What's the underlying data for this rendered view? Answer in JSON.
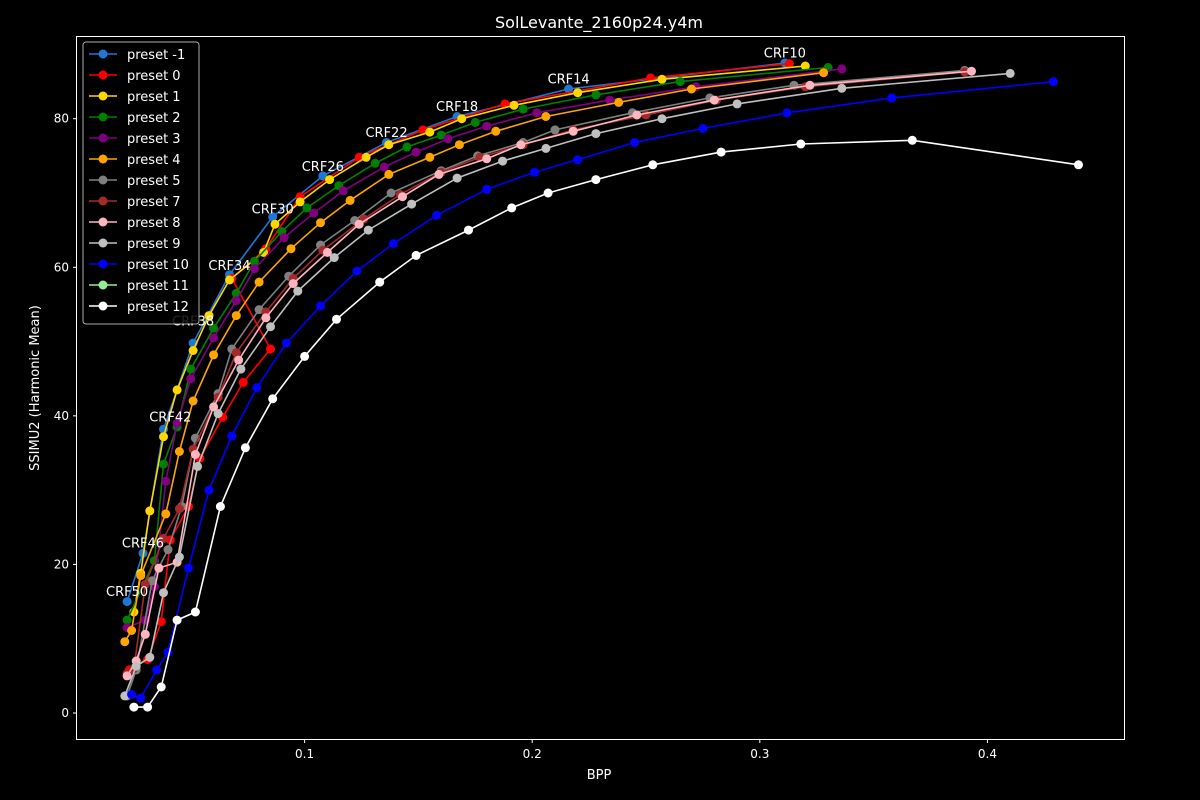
{
  "chart_data": {
    "type": "line",
    "title": "SolLevante_2160p24.y4m",
    "xlabel": "BPP",
    "ylabel": "SSIMU2 (Harmonic Mean)",
    "xlim": [
      0.0,
      0.46
    ],
    "ylim": [
      -3.5,
      91
    ],
    "xticks": [
      0.1,
      0.2,
      0.3,
      0.4
    ],
    "yticks": [
      0,
      20,
      40,
      60,
      80
    ],
    "grid": false,
    "legend_position": "top-left",
    "annotations": [
      {
        "text": "CRF10",
        "x": 0.311,
        "y": 88.8
      },
      {
        "text": "CRF14",
        "x": 0.216,
        "y": 85.3
      },
      {
        "text": "CRF18",
        "x": 0.167,
        "y": 81.6
      },
      {
        "text": "CRF22",
        "x": 0.136,
        "y": 78.1
      },
      {
        "text": "CRF26",
        "x": 0.108,
        "y": 73.5
      },
      {
        "text": "CRF30",
        "x": 0.086,
        "y": 67.8
      },
      {
        "text": "CRF34",
        "x": 0.067,
        "y": 60.2
      },
      {
        "text": "CRF38",
        "x": 0.051,
        "y": 52.7
      },
      {
        "text": "CRF42",
        "x": 0.041,
        "y": 39.8
      },
      {
        "text": "CRF46",
        "x": 0.029,
        "y": 22.8
      },
      {
        "text": "CRF50",
        "x": 0.022,
        "y": 16.3
      }
    ],
    "series": [
      {
        "name": "preset -1",
        "color": "#1f77d4",
        "points": [
          [
            0.022,
            15.0
          ],
          [
            0.029,
            21.5
          ],
          [
            0.038,
            38.2
          ],
          [
            0.051,
            49.8
          ],
          [
            0.067,
            59.0
          ],
          [
            0.086,
            66.8
          ],
          [
            0.108,
            72.3
          ],
          [
            0.136,
            76.8
          ],
          [
            0.167,
            80.3
          ],
          [
            0.216,
            84.0
          ],
          [
            0.311,
            87.5
          ]
        ]
      },
      {
        "name": "preset 0",
        "color": "#ff0000",
        "points": [
          [
            0.023,
            5.8
          ],
          [
            0.031,
            7.2
          ],
          [
            0.037,
            12.3
          ],
          [
            0.041,
            23.3
          ],
          [
            0.049,
            27.8
          ],
          [
            0.054,
            34.3
          ],
          [
            0.064,
            39.8
          ],
          [
            0.073,
            44.5
          ],
          [
            0.085,
            49.0
          ],
          [
            0.068,
            58.5
          ],
          [
            0.083,
            62.5
          ],
          [
            0.098,
            69.5
          ],
          [
            0.124,
            74.8
          ],
          [
            0.152,
            78.5
          ],
          [
            0.188,
            82.0
          ],
          [
            0.252,
            85.5
          ],
          [
            0.313,
            87.4
          ]
        ]
      },
      {
        "name": "preset 1",
        "color": "#ffd700",
        "points": [
          [
            0.025,
            13.6
          ],
          [
            0.028,
            18.8
          ],
          [
            0.032,
            27.2
          ],
          [
            0.038,
            37.2
          ],
          [
            0.044,
            43.5
          ],
          [
            0.051,
            48.8
          ],
          [
            0.058,
            53.5
          ],
          [
            0.067,
            58.3
          ],
          [
            0.082,
            62.0
          ],
          [
            0.087,
            65.8
          ],
          [
            0.098,
            68.8
          ],
          [
            0.111,
            71.8
          ],
          [
            0.127,
            74.8
          ],
          [
            0.137,
            76.5
          ],
          [
            0.155,
            78.2
          ],
          [
            0.169,
            80.0
          ],
          [
            0.192,
            81.8
          ],
          [
            0.22,
            83.5
          ],
          [
            0.257,
            85.3
          ],
          [
            0.32,
            87.1
          ]
        ]
      },
      {
        "name": "preset 2",
        "color": "#008000",
        "points": [
          [
            0.022,
            12.5
          ],
          [
            0.034,
            20.5
          ],
          [
            0.038,
            33.5
          ],
          [
            0.044,
            38.5
          ],
          [
            0.05,
            46.3
          ],
          [
            0.06,
            51.8
          ],
          [
            0.07,
            56.5
          ],
          [
            0.078,
            60.8
          ],
          [
            0.09,
            64.8
          ],
          [
            0.101,
            68.0
          ],
          [
            0.115,
            71.0
          ],
          [
            0.131,
            74.0
          ],
          [
            0.145,
            76.2
          ],
          [
            0.16,
            77.8
          ],
          [
            0.175,
            79.5
          ],
          [
            0.196,
            81.3
          ],
          [
            0.228,
            83.2
          ],
          [
            0.265,
            85.0
          ],
          [
            0.33,
            86.9
          ]
        ]
      },
      {
        "name": "preset 3",
        "color": "#800080",
        "points": [
          [
            0.022,
            11.5
          ],
          [
            0.03,
            12.5
          ],
          [
            0.034,
            17.0
          ],
          [
            0.039,
            31.2
          ],
          [
            0.044,
            39.0
          ],
          [
            0.05,
            45.0
          ],
          [
            0.06,
            50.5
          ],
          [
            0.07,
            55.5
          ],
          [
            0.078,
            59.8
          ],
          [
            0.091,
            64.0
          ],
          [
            0.104,
            67.3
          ],
          [
            0.117,
            70.3
          ],
          [
            0.135,
            73.5
          ],
          [
            0.149,
            75.5
          ],
          [
            0.163,
            77.3
          ],
          [
            0.18,
            79.0
          ],
          [
            0.202,
            80.8
          ],
          [
            0.234,
            82.5
          ],
          [
            0.272,
            84.3
          ],
          [
            0.336,
            86.7
          ]
        ]
      },
      {
        "name": "preset 4",
        "color": "#ffa500",
        "points": [
          [
            0.021,
            9.6
          ],
          [
            0.024,
            11.1
          ],
          [
            0.028,
            18.5
          ],
          [
            0.039,
            26.8
          ],
          [
            0.045,
            35.2
          ],
          [
            0.051,
            42.0
          ],
          [
            0.06,
            48.2
          ],
          [
            0.07,
            53.5
          ],
          [
            0.08,
            58.0
          ],
          [
            0.094,
            62.5
          ],
          [
            0.107,
            66.0
          ],
          [
            0.12,
            69.0
          ],
          [
            0.137,
            72.5
          ],
          [
            0.155,
            74.8
          ],
          [
            0.168,
            76.5
          ],
          [
            0.184,
            78.3
          ],
          [
            0.206,
            80.3
          ],
          [
            0.238,
            82.2
          ],
          [
            0.27,
            84.0
          ],
          [
            0.328,
            86.2
          ]
        ]
      },
      {
        "name": "preset 5",
        "color": "#808080",
        "points": [
          [
            0.022,
            2.3
          ],
          [
            0.026,
            5.8
          ],
          [
            0.033,
            17.8
          ],
          [
            0.04,
            22.0
          ],
          [
            0.046,
            27.8
          ],
          [
            0.052,
            37.0
          ],
          [
            0.062,
            43.0
          ],
          [
            0.068,
            49.0
          ],
          [
            0.08,
            54.3
          ],
          [
            0.093,
            58.8
          ],
          [
            0.107,
            63.0
          ],
          [
            0.122,
            66.3
          ],
          [
            0.138,
            70.0
          ],
          [
            0.16,
            73.0
          ],
          [
            0.176,
            75.0
          ],
          [
            0.196,
            76.8
          ],
          [
            0.21,
            78.5
          ],
          [
            0.244,
            80.8
          ],
          [
            0.278,
            82.8
          ],
          [
            0.315,
            84.5
          ],
          [
            0.39,
            86.5
          ]
        ]
      },
      {
        "name": "preset 7",
        "color": "#a52a2a",
        "points": [
          [
            0.022,
            5.3
          ],
          [
            0.025,
            6.0
          ],
          [
            0.03,
            17.3
          ],
          [
            0.038,
            23.5
          ],
          [
            0.045,
            27.5
          ],
          [
            0.051,
            35.5
          ],
          [
            0.062,
            42.5
          ],
          [
            0.07,
            48.5
          ],
          [
            0.083,
            54.0
          ],
          [
            0.095,
            58.5
          ],
          [
            0.108,
            62.3
          ],
          [
            0.126,
            66.5
          ],
          [
            0.142,
            69.8
          ],
          [
            0.16,
            72.8
          ],
          [
            0.177,
            74.8
          ],
          [
            0.196,
            76.5
          ],
          [
            0.218,
            78.5
          ],
          [
            0.25,
            80.5
          ],
          [
            0.281,
            82.5
          ],
          [
            0.32,
            84.3
          ],
          [
            0.39,
            86.3
          ]
        ]
      },
      {
        "name": "preset 8",
        "color": "#ffb6c1",
        "points": [
          [
            0.022,
            5.0
          ],
          [
            0.026,
            7.0
          ],
          [
            0.03,
            10.6
          ],
          [
            0.036,
            19.5
          ],
          [
            0.044,
            20.3
          ],
          [
            0.052,
            34.8
          ],
          [
            0.06,
            41.2
          ],
          [
            0.071,
            47.5
          ],
          [
            0.083,
            53.2
          ],
          [
            0.095,
            57.8
          ],
          [
            0.11,
            62.0
          ],
          [
            0.124,
            65.8
          ],
          [
            0.143,
            69.5
          ],
          [
            0.159,
            72.5
          ],
          [
            0.18,
            74.6
          ],
          [
            0.195,
            76.5
          ],
          [
            0.218,
            78.3
          ],
          [
            0.246,
            80.5
          ],
          [
            0.28,
            82.5
          ],
          [
            0.322,
            84.5
          ],
          [
            0.393,
            86.4
          ]
        ]
      },
      {
        "name": "preset 9",
        "color": "#c0c0c0",
        "points": [
          [
            0.021,
            2.3
          ],
          [
            0.026,
            6.3
          ],
          [
            0.032,
            7.5
          ],
          [
            0.038,
            16.2
          ],
          [
            0.045,
            21.0
          ],
          [
            0.053,
            33.2
          ],
          [
            0.062,
            40.3
          ],
          [
            0.072,
            46.3
          ],
          [
            0.085,
            52.0
          ],
          [
            0.097,
            56.8
          ],
          [
            0.113,
            61.3
          ],
          [
            0.128,
            65.0
          ],
          [
            0.147,
            68.5
          ],
          [
            0.167,
            72.0
          ],
          [
            0.187,
            74.3
          ],
          [
            0.206,
            76.0
          ],
          [
            0.228,
            78.0
          ],
          [
            0.257,
            80.0
          ],
          [
            0.29,
            82.0
          ],
          [
            0.336,
            84.1
          ],
          [
            0.41,
            86.1
          ]
        ]
      },
      {
        "name": "preset 10",
        "color": "#0000ff",
        "points": [
          [
            0.024,
            2.5
          ],
          [
            0.028,
            2.0
          ],
          [
            0.035,
            5.8
          ],
          [
            0.04,
            8.2
          ],
          [
            0.049,
            19.5
          ],
          [
            0.058,
            30.0
          ],
          [
            0.068,
            37.3
          ],
          [
            0.079,
            43.8
          ],
          [
            0.092,
            49.8
          ],
          [
            0.107,
            54.8
          ],
          [
            0.123,
            59.5
          ],
          [
            0.139,
            63.2
          ],
          [
            0.158,
            67.0
          ],
          [
            0.18,
            70.5
          ],
          [
            0.201,
            72.8
          ],
          [
            0.22,
            74.5
          ],
          [
            0.245,
            76.8
          ],
          [
            0.275,
            78.7
          ],
          [
            0.312,
            80.8
          ],
          [
            0.358,
            82.8
          ],
          [
            0.429,
            85.0
          ]
        ]
      },
      {
        "name": "preset 11",
        "color": "#90ee90",
        "points": []
      },
      {
        "name": "preset 12",
        "color": "#ffffff",
        "points": [
          [
            0.025,
            0.8
          ],
          [
            0.031,
            0.8
          ],
          [
            0.037,
            3.5
          ],
          [
            0.044,
            12.5
          ],
          [
            0.052,
            13.6
          ],
          [
            0.063,
            27.8
          ],
          [
            0.074,
            35.7
          ],
          [
            0.086,
            42.3
          ],
          [
            0.1,
            48.0
          ],
          [
            0.114,
            53.0
          ],
          [
            0.133,
            58.0
          ],
          [
            0.149,
            61.6
          ],
          [
            0.172,
            65.0
          ],
          [
            0.191,
            68.0
          ],
          [
            0.207,
            70.0
          ],
          [
            0.228,
            71.8
          ],
          [
            0.253,
            73.8
          ],
          [
            0.283,
            75.5
          ],
          [
            0.318,
            76.6
          ],
          [
            0.367,
            77.1
          ],
          [
            0.44,
            73.8
          ]
        ]
      }
    ]
  }
}
